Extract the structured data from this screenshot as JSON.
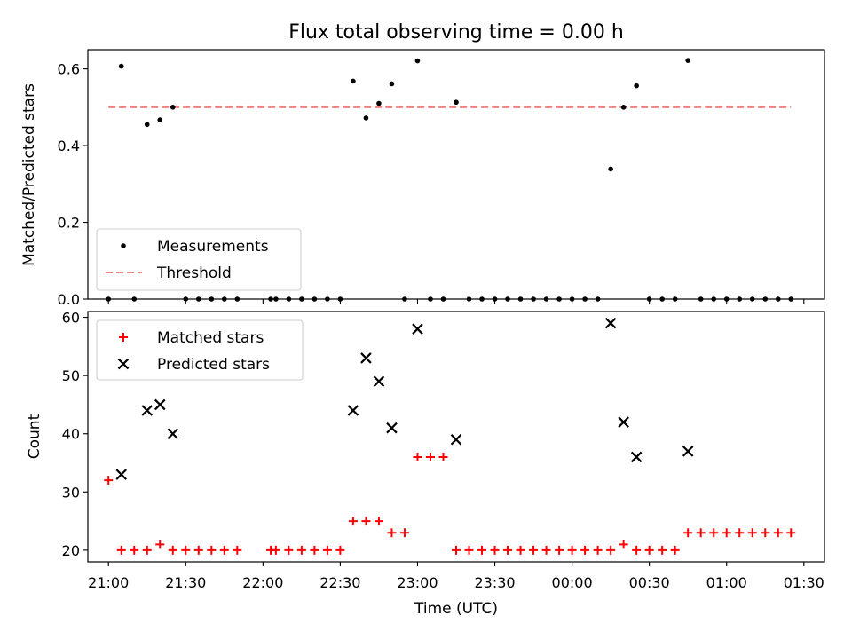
{
  "title": "Flux total observing time = 0.00 h",
  "chart_data": [
    {
      "type": "scatter",
      "ylabel": "Matched/Predicted stars",
      "xlim": [
        "20:52",
        "01:38"
      ],
      "ylim": [
        0,
        0.65
      ],
      "yticks": [
        "0.0",
        "0.2",
        "0.4",
        "0.6"
      ],
      "legend_position": "lower-left",
      "series": [
        {
          "name": "Measurements",
          "marker": "dot",
          "color": "#000000",
          "points": [
            [
              "21:00",
              0
            ],
            [
              "21:05",
              0.607
            ],
            [
              "21:10",
              0
            ],
            [
              "21:15",
              0.455
            ],
            [
              "21:20",
              0.467
            ],
            [
              "21:25",
              0.5
            ],
            [
              "21:30",
              0
            ],
            [
              "21:35",
              0
            ],
            [
              "21:40",
              0
            ],
            [
              "21:45",
              0
            ],
            [
              "21:50",
              0
            ],
            [
              "22:03",
              0
            ],
            [
              "22:05",
              0
            ],
            [
              "22:10",
              0
            ],
            [
              "22:15",
              0
            ],
            [
              "22:20",
              0
            ],
            [
              "22:25",
              0
            ],
            [
              "22:30",
              0
            ],
            [
              "22:35",
              0.568
            ],
            [
              "22:40",
              0.472
            ],
            [
              "22:45",
              0.51
            ],
            [
              "22:50",
              0.561
            ],
            [
              "22:55",
              0
            ],
            [
              "23:00",
              0.621
            ],
            [
              "23:05",
              0
            ],
            [
              "23:10",
              0
            ],
            [
              "23:15",
              0.513
            ],
            [
              "23:20",
              0
            ],
            [
              "23:25",
              0
            ],
            [
              "23:30",
              0
            ],
            [
              "23:35",
              0
            ],
            [
              "23:40",
              0
            ],
            [
              "23:45",
              0
            ],
            [
              "23:50",
              0
            ],
            [
              "23:55",
              0
            ],
            [
              "00:00",
              0
            ],
            [
              "00:05",
              0
            ],
            [
              "00:10",
              0
            ],
            [
              "00:15",
              0.339
            ],
            [
              "00:20",
              0.5
            ],
            [
              "00:25",
              0.556
            ],
            [
              "00:30",
              0
            ],
            [
              "00:35",
              0
            ],
            [
              "00:40",
              0
            ],
            [
              "00:45",
              0.622
            ],
            [
              "00:50",
              0
            ],
            [
              "00:55",
              0
            ],
            [
              "01:00",
              0
            ],
            [
              "01:05",
              0
            ],
            [
              "01:10",
              0
            ],
            [
              "01:15",
              0
            ],
            [
              "01:20",
              0
            ],
            [
              "01:25",
              0
            ]
          ]
        },
        {
          "name": "Threshold",
          "marker": "dashed-line",
          "color": "#f08080",
          "points": [
            [
              "21:00",
              0.5
            ],
            [
              "01:25",
              0.5
            ]
          ]
        }
      ]
    },
    {
      "type": "scatter",
      "xlabel": "Time (UTC)",
      "ylabel": "Count",
      "xlim": [
        "20:52",
        "01:38"
      ],
      "ylim": [
        18,
        61
      ],
      "xticks": [
        "21:00",
        "21:30",
        "22:00",
        "22:30",
        "23:00",
        "23:30",
        "00:00",
        "00:30",
        "01:00",
        "01:30"
      ],
      "yticks": [
        "20",
        "30",
        "40",
        "50",
        "60"
      ],
      "legend_position": "upper-left",
      "series": [
        {
          "name": "Matched stars",
          "marker": "plus",
          "color": "#ff0000",
          "points": [
            [
              "21:00",
              32
            ],
            [
              "21:05",
              20
            ],
            [
              "21:10",
              20
            ],
            [
              "21:15",
              20
            ],
            [
              "21:20",
              21
            ],
            [
              "21:25",
              20
            ],
            [
              "21:30",
              20
            ],
            [
              "21:35",
              20
            ],
            [
              "21:40",
              20
            ],
            [
              "21:45",
              20
            ],
            [
              "21:50",
              20
            ],
            [
              "22:03",
              20
            ],
            [
              "22:05",
              20
            ],
            [
              "22:10",
              20
            ],
            [
              "22:15",
              20
            ],
            [
              "22:20",
              20
            ],
            [
              "22:25",
              20
            ],
            [
              "22:30",
              20
            ],
            [
              "22:35",
              25
            ],
            [
              "22:40",
              25
            ],
            [
              "22:45",
              25
            ],
            [
              "22:50",
              23
            ],
            [
              "22:55",
              23
            ],
            [
              "23:00",
              36
            ],
            [
              "23:05",
              36
            ],
            [
              "23:10",
              36
            ],
            [
              "23:15",
              20
            ],
            [
              "23:20",
              20
            ],
            [
              "23:25",
              20
            ],
            [
              "23:30",
              20
            ],
            [
              "23:35",
              20
            ],
            [
              "23:40",
              20
            ],
            [
              "23:45",
              20
            ],
            [
              "23:50",
              20
            ],
            [
              "23:55",
              20
            ],
            [
              "00:00",
              20
            ],
            [
              "00:05",
              20
            ],
            [
              "00:10",
              20
            ],
            [
              "00:15",
              20
            ],
            [
              "00:20",
              21
            ],
            [
              "00:25",
              20
            ],
            [
              "00:30",
              20
            ],
            [
              "00:35",
              20
            ],
            [
              "00:40",
              20
            ],
            [
              "00:45",
              23
            ],
            [
              "00:50",
              23
            ],
            [
              "00:55",
              23
            ],
            [
              "01:00",
              23
            ],
            [
              "01:05",
              23
            ],
            [
              "01:10",
              23
            ],
            [
              "01:15",
              23
            ],
            [
              "01:20",
              23
            ],
            [
              "01:25",
              23
            ]
          ]
        },
        {
          "name": "Predicted stars",
          "marker": "x",
          "color": "#000000",
          "points": [
            [
              "21:05",
              33
            ],
            [
              "21:15",
              44
            ],
            [
              "21:20",
              45
            ],
            [
              "21:25",
              40
            ],
            [
              "22:35",
              44
            ],
            [
              "22:40",
              53
            ],
            [
              "22:45",
              49
            ],
            [
              "22:50",
              41
            ],
            [
              "23:00",
              58
            ],
            [
              "23:15",
              39
            ],
            [
              "00:15",
              59
            ],
            [
              "00:20",
              42
            ],
            [
              "00:25",
              36
            ],
            [
              "00:45",
              37
            ]
          ]
        }
      ]
    }
  ]
}
